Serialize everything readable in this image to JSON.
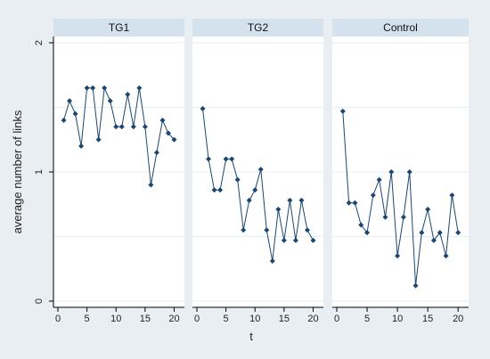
{
  "chart_data": {
    "type": "line",
    "xlabel": "t",
    "ylabel": "average number of links",
    "xlim": [
      0,
      21
    ],
    "ylim": [
      0,
      2
    ],
    "x_ticks": [
      0,
      5,
      10,
      15,
      20
    ],
    "y_ticks": [
      0,
      1,
      2
    ],
    "grid": true,
    "x": [
      1,
      2,
      3,
      4,
      5,
      6,
      7,
      8,
      9,
      10,
      11,
      12,
      13,
      14,
      15,
      16,
      17,
      18,
      19,
      20
    ],
    "panels": [
      {
        "title": "TG1",
        "values": [
          1.4,
          1.55,
          1.45,
          1.2,
          1.65,
          1.65,
          1.25,
          1.65,
          1.55,
          1.35,
          1.35,
          1.6,
          1.35,
          1.65,
          1.35,
          0.9,
          1.15,
          1.4,
          1.3,
          1.25
        ]
      },
      {
        "title": "TG2",
        "values": [
          1.49,
          1.1,
          0.86,
          0.86,
          1.1,
          1.1,
          0.94,
          0.55,
          0.78,
          0.86,
          1.02,
          0.55,
          0.31,
          0.71,
          0.47,
          0.78,
          0.47,
          0.78,
          0.55,
          0.47
        ]
      },
      {
        "title": "Control",
        "values": [
          1.47,
          0.76,
          0.76,
          0.59,
          0.53,
          0.82,
          0.94,
          0.65,
          1.0,
          0.35,
          0.65,
          1.0,
          0.12,
          0.53,
          0.71,
          0.47,
          0.53,
          0.35,
          0.82,
          0.53
        ]
      }
    ],
    "colors": {
      "outer_background": "#e9eef3",
      "strip_background": "#d4e2ee",
      "plot_background": "#ffffff",
      "gridline": "#e8eef4",
      "series": "#1a476f",
      "axis": "#000000"
    }
  }
}
